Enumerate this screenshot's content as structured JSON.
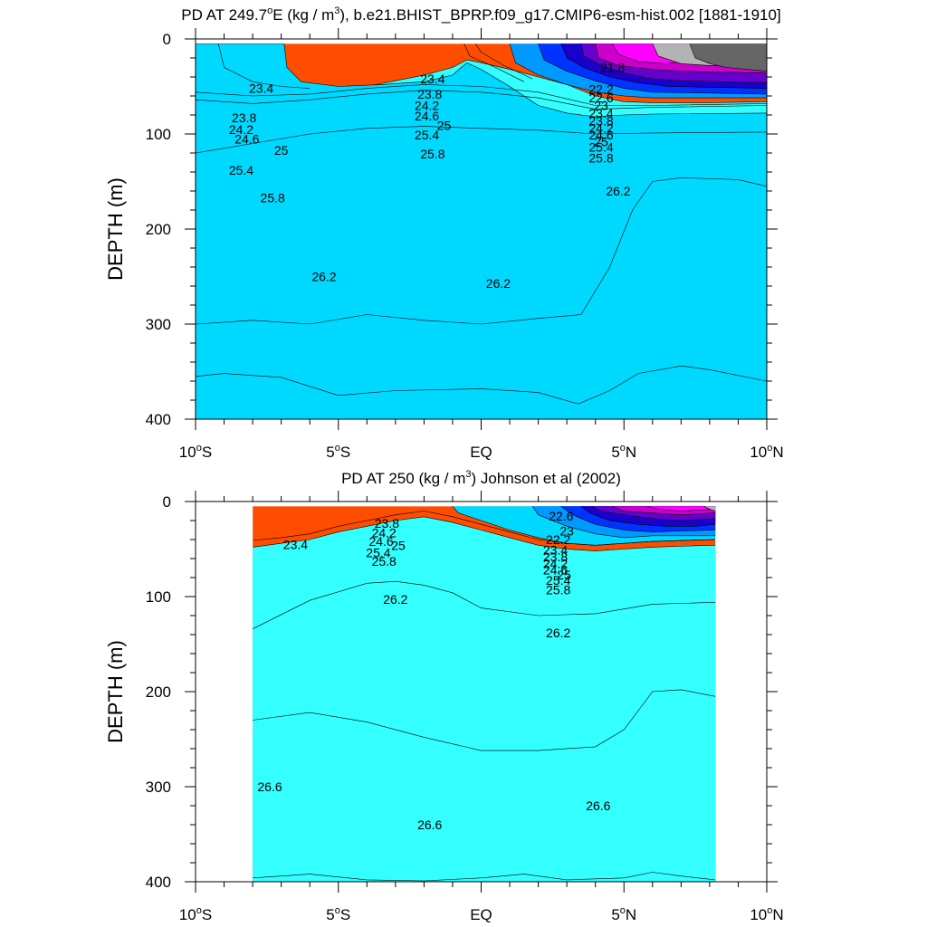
{
  "chart_data": [
    {
      "type": "contour",
      "title": "PD AT 249.7°E (kg / m³), b.e21.BHIST_BPRP.f09_g17.CMIP6-esm-hist.002 [1881-1910]",
      "title_parts": [
        "PD AT 249.7",
        "o",
        "E (kg / m",
        "3",
        "), b.e21.BHIST_BPRP.f09_g17.CMIP6-esm-hist.002 [1881-1910]"
      ],
      "ylabel": "DEPTH (m)",
      "xlim": [
        -10,
        10
      ],
      "ylim": [
        400,
        0
      ],
      "x_ticks": [
        {
          "v": -10,
          "label": "10",
          "sup": "o",
          "suffix": "S"
        },
        {
          "v": -5,
          "label": "5",
          "sup": "o",
          "suffix": "S"
        },
        {
          "v": 0,
          "label": "EQ",
          "sup": "",
          "suffix": ""
        },
        {
          "v": 5,
          "label": "5",
          "sup": "o",
          "suffix": "N"
        },
        {
          "v": 10,
          "label": "10",
          "sup": "o",
          "suffix": "N"
        }
      ],
      "y_ticks": [
        "0",
        "100",
        "200",
        "300",
        "400"
      ],
      "data_extent_x": [
        -10,
        10
      ],
      "contour_labels": [
        {
          "text": "23.4",
          "x": -7.7,
          "y": 52
        },
        {
          "text": "23.8",
          "x": -8.3,
          "y": 83
        },
        {
          "text": "24.2",
          "x": -8.4,
          "y": 95
        },
        {
          "text": "24.6",
          "x": -8.2,
          "y": 105
        },
        {
          "text": "25",
          "x": -7.0,
          "y": 117
        },
        {
          "text": "25.4",
          "x": -8.4,
          "y": 138
        },
        {
          "text": "25.8",
          "x": -7.3,
          "y": 167
        },
        {
          "text": "26.2",
          "x": -5.5,
          "y": 250
        },
        {
          "text": "26.2",
          "x": 0.6,
          "y": 257
        },
        {
          "text": "23.4",
          "x": -1.7,
          "y": 42
        },
        {
          "text": "23.8",
          "x": -1.8,
          "y": 58
        },
        {
          "text": "24.2",
          "x": -1.9,
          "y": 70
        },
        {
          "text": "24.6",
          "x": -1.9,
          "y": 81
        },
        {
          "text": "25",
          "x": -1.3,
          "y": 91
        },
        {
          "text": "25.4",
          "x": -1.9,
          "y": 101
        },
        {
          "text": "25.8",
          "x": -1.7,
          "y": 121
        },
        {
          "text": "21.8",
          "x": 4.6,
          "y": 30
        },
        {
          "text": "22.2",
          "x": 4.2,
          "y": 53
        },
        {
          "text": "22.6",
          "x": 4.2,
          "y": 62
        },
        {
          "text": "23",
          "x": 4.2,
          "y": 70
        },
        {
          "text": "23.4",
          "x": 4.2,
          "y": 78
        },
        {
          "text": "23.8",
          "x": 4.2,
          "y": 86
        },
        {
          "text": "24.2",
          "x": 4.2,
          "y": 94
        },
        {
          "text": "24.6",
          "x": 4.2,
          "y": 101
        },
        {
          "text": "25",
          "x": 4.2,
          "y": 108
        },
        {
          "text": "25.4",
          "x": 4.2,
          "y": 114
        },
        {
          "text": "25.8",
          "x": 4.2,
          "y": 125
        },
        {
          "text": "26.2",
          "x": 4.8,
          "y": 160
        }
      ]
    },
    {
      "type": "contour",
      "title": "PD AT 250 (kg / m³) Johnson et al (2002)",
      "title_parts": [
        "PD AT 250 (kg / m",
        "3",
        ") Johnson et al (2002)"
      ],
      "ylabel": "DEPTH (m)",
      "xlim": [
        -10,
        10
      ],
      "ylim": [
        400,
        0
      ],
      "x_ticks": [
        {
          "v": -10,
          "label": "10",
          "sup": "o",
          "suffix": "S"
        },
        {
          "v": -5,
          "label": "5",
          "sup": "o",
          "suffix": "S"
        },
        {
          "v": 0,
          "label": "EQ",
          "sup": "",
          "suffix": ""
        },
        {
          "v": 5,
          "label": "5",
          "sup": "o",
          "suffix": "N"
        },
        {
          "v": 10,
          "label": "10",
          "sup": "o",
          "suffix": "N"
        }
      ],
      "y_ticks": [
        "0",
        "100",
        "200",
        "300",
        "400"
      ],
      "data_extent_x": [
        -8,
        8.2
      ],
      "contour_labels": [
        {
          "text": "23.4",
          "x": -6.5,
          "y": 45
        },
        {
          "text": "23.8",
          "x": -3.3,
          "y": 23
        },
        {
          "text": "24.2",
          "x": -3.4,
          "y": 33
        },
        {
          "text": "24.6",
          "x": -3.5,
          "y": 42
        },
        {
          "text": "25",
          "x": -2.9,
          "y": 46
        },
        {
          "text": "25.4",
          "x": -3.6,
          "y": 54
        },
        {
          "text": "25.8",
          "x": -3.4,
          "y": 63
        },
        {
          "text": "22.6",
          "x": 2.8,
          "y": 15
        },
        {
          "text": "23",
          "x": 3.0,
          "y": 31
        },
        {
          "text": "22.2",
          "x": 2.7,
          "y": 40
        },
        {
          "text": "23.4",
          "x": 2.6,
          "y": 51
        },
        {
          "text": "23.8",
          "x": 2.6,
          "y": 58
        },
        {
          "text": "24.2",
          "x": 2.6,
          "y": 65
        },
        {
          "text": "24.6",
          "x": 2.6,
          "y": 72
        },
        {
          "text": "25",
          "x": 2.9,
          "y": 77
        },
        {
          "text": "25.4",
          "x": 2.7,
          "y": 83
        },
        {
          "text": "25.8",
          "x": 2.7,
          "y": 93
        },
        {
          "text": "26.2",
          "x": -3.0,
          "y": 103
        },
        {
          "text": "26.2",
          "x": 2.7,
          "y": 138
        },
        {
          "text": "26.6",
          "x": -7.4,
          "y": 300
        },
        {
          "text": "26.6",
          "x": -1.8,
          "y": 340
        },
        {
          "text": "26.6",
          "x": 4.1,
          "y": 320
        }
      ]
    }
  ]
}
